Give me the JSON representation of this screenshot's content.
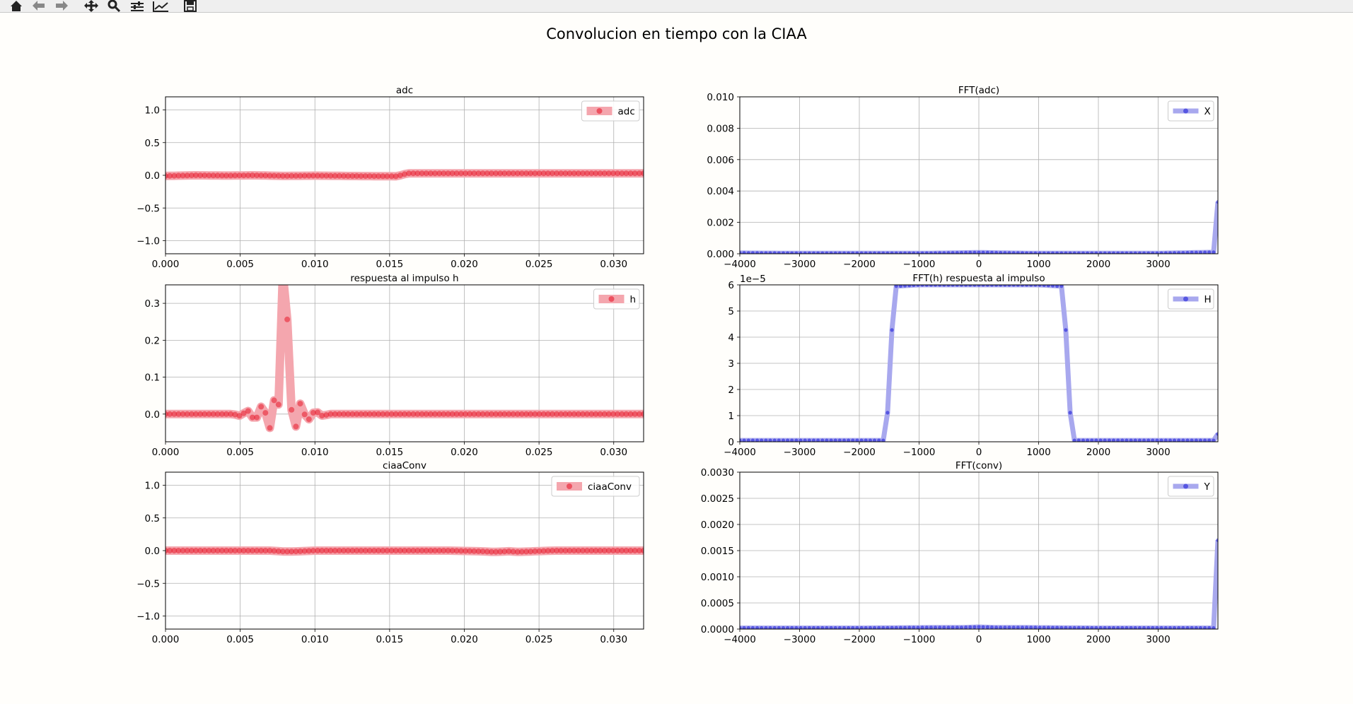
{
  "window": {
    "suptitle": "Convolucion en tiempo con la CIAA"
  },
  "toolbar": {
    "buttons": [
      {
        "name": "home-icon"
      },
      {
        "name": "back-arrow-icon"
      },
      {
        "name": "forward-arrow-icon"
      },
      {
        "name": "pan-icon"
      },
      {
        "name": "zoom-icon"
      },
      {
        "name": "configure-subplots-icon"
      },
      {
        "name": "edit-axis-icon"
      },
      {
        "name": "save-icon"
      }
    ]
  },
  "colors": {
    "red_line": "#f4a6ae",
    "red_marker": "#e8192c",
    "blue_line": "#a8a8ee",
    "blue_marker": "#2020d8",
    "grid": "#b0b0b0",
    "background": "#fffefb"
  },
  "chart_data": [
    {
      "type": "line",
      "title": "adc",
      "xlim": [
        0,
        0.032
      ],
      "ylim": [
        -1.2,
        1.2
      ],
      "xticks": [
        0.0,
        0.005,
        0.01,
        0.015,
        0.02,
        0.025,
        0.03
      ],
      "xtick_labels": [
        "0.000",
        "0.005",
        "0.010",
        "0.015",
        "0.020",
        "0.025",
        "0.030"
      ],
      "yticks": [
        -1.0,
        -0.5,
        0.0,
        0.5,
        1.0
      ],
      "ytick_labels": [
        "−1.0",
        "−0.5",
        "0.0",
        "0.5",
        "1.0"
      ],
      "grid": true,
      "legend_position": "top-right",
      "series": [
        {
          "name": "adc",
          "color": "red",
          "x": [
            0,
            0.002,
            0.004,
            0.006,
            0.008,
            0.01,
            0.012,
            0.0155,
            0.0162,
            0.018,
            0.02,
            0.022,
            0.024,
            0.026,
            0.028,
            0.03,
            0.032
          ],
          "y": [
            -0.01,
            0.0,
            -0.005,
            0.0,
            -0.01,
            -0.005,
            -0.01,
            -0.015,
            0.03,
            0.03,
            0.03,
            0.03,
            0.03,
            0.03,
            0.03,
            0.03,
            0.03
          ]
        }
      ]
    },
    {
      "type": "line",
      "title": "FFT(adc)",
      "xlim": [
        -4000,
        4000
      ],
      "ylim": [
        0,
        0.01
      ],
      "xticks": [
        -4000,
        -3000,
        -2000,
        -1000,
        0,
        1000,
        2000,
        3000
      ],
      "xtick_labels": [
        "−4000",
        "−3000",
        "−2000",
        "−1000",
        "0",
        "1000",
        "2000",
        "3000"
      ],
      "yticks": [
        0.0,
        0.002,
        0.004,
        0.006,
        0.008,
        0.01
      ],
      "ytick_labels": [
        "0.000",
        "0.002",
        "0.004",
        "0.006",
        "0.008",
        "0.010"
      ],
      "grid": true,
      "legend_position": "top-right",
      "series": [
        {
          "name": "X",
          "color": "blue",
          "x": [
            -4000,
            -3000,
            -2000,
            -1000,
            -500,
            0,
            500,
            1000,
            2000,
            3000,
            3990,
            4000
          ],
          "y": [
            5e-05,
            3e-05,
            3e-05,
            3e-05,
            5e-05,
            8e-05,
            5e-05,
            3e-05,
            3e-05,
            3e-05,
            0.0001,
            0.0033
          ]
        }
      ]
    },
    {
      "type": "line",
      "title": "respuesta al impulso h",
      "xlim": [
        0,
        0.032
      ],
      "ylim": [
        -0.075,
        0.35
      ],
      "xticks": [
        0.0,
        0.005,
        0.01,
        0.015,
        0.02,
        0.025,
        0.03
      ],
      "xtick_labels": [
        "0.000",
        "0.005",
        "0.010",
        "0.015",
        "0.020",
        "0.025",
        "0.030"
      ],
      "yticks": [
        0.0,
        0.1,
        0.2,
        0.3
      ],
      "ytick_labels": [
        "0.0",
        "0.1",
        "0.2",
        "0.3"
      ],
      "grid": true,
      "legend_position": "top-right",
      "series": [
        {
          "name": "h",
          "color": "red",
          "x": [
            0,
            0.0045,
            0.005,
            0.0055,
            0.006,
            0.0065,
            0.007,
            0.0073,
            0.0075,
            0.0077,
            0.0078,
            0.008,
            0.0082,
            0.0083,
            0.0085,
            0.0087,
            0.009,
            0.0095,
            0.01,
            0.0105,
            0.011,
            0.032
          ],
          "y": [
            0,
            0,
            -0.005,
            0.01,
            -0.02,
            0.03,
            -0.04,
            0.045,
            -0.06,
            0.21,
            0.38,
            0.38,
            0.21,
            -0.06,
            0.045,
            -0.04,
            0.03,
            -0.02,
            0.01,
            -0.005,
            0,
            0
          ]
        }
      ]
    },
    {
      "type": "line",
      "title": "FFT(h) respuesta al impulso",
      "xlim": [
        -4000,
        4000
      ],
      "ylim": [
        0,
        6
      ],
      "offset_label": "1e−5",
      "xticks": [
        -4000,
        -3000,
        -2000,
        -1000,
        0,
        1000,
        2000,
        3000
      ],
      "xtick_labels": [
        "−4000",
        "−3000",
        "−2000",
        "−1000",
        "0",
        "1000",
        "2000",
        "3000"
      ],
      "yticks": [
        0,
        1,
        2,
        3,
        4,
        5,
        6
      ],
      "ytick_labels": [
        "0",
        "1",
        "2",
        "3",
        "4",
        "5",
        "6"
      ],
      "grid": true,
      "legend_position": "top-right",
      "series": [
        {
          "name": "H",
          "color": "blue",
          "x": [
            -4000,
            -1600,
            -1570,
            -1510,
            -1450,
            -1390,
            -1000,
            0,
            1000,
            1390,
            1450,
            1510,
            1570,
            1600,
            3990,
            4000
          ],
          "y": [
            0.05,
            0.05,
            0.15,
            1.5,
            4.5,
            5.95,
            6,
            6,
            6,
            5.95,
            4.5,
            1.5,
            0.15,
            0.05,
            0.05,
            0.3
          ]
        }
      ]
    },
    {
      "type": "line",
      "title": "ciaaConv",
      "xlim": [
        0,
        0.032
      ],
      "ylim": [
        -1.2,
        1.2
      ],
      "xticks": [
        0.0,
        0.005,
        0.01,
        0.015,
        0.02,
        0.025,
        0.03
      ],
      "xtick_labels": [
        "0.000",
        "0.005",
        "0.010",
        "0.015",
        "0.020",
        "0.025",
        "0.030"
      ],
      "yticks": [
        -1.0,
        -0.5,
        0.0,
        0.5,
        1.0
      ],
      "ytick_labels": [
        "−1.0",
        "−0.5",
        "0.0",
        "0.5",
        "1.0"
      ],
      "grid": true,
      "legend_position": "top-right",
      "series": [
        {
          "name": "ciaaConv",
          "color": "red",
          "x": [
            0,
            0.004,
            0.007,
            0.008,
            0.009,
            0.01,
            0.013,
            0.016,
            0.019,
            0.021,
            0.022,
            0.023,
            0.0235,
            0.026,
            0.029,
            0.032
          ],
          "y": [
            0,
            0,
            0,
            -0.015,
            -0.01,
            0,
            0,
            0,
            0,
            -0.01,
            -0.02,
            -0.01,
            -0.02,
            0,
            0,
            0
          ]
        }
      ]
    },
    {
      "type": "line",
      "title": "FFT(conv)",
      "xlim": [
        -4000,
        4000
      ],
      "ylim": [
        0,
        0.003
      ],
      "xticks": [
        -4000,
        -3000,
        -2000,
        -1000,
        0,
        1000,
        2000,
        3000
      ],
      "xtick_labels": [
        "−4000",
        "−3000",
        "−2000",
        "−1000",
        "0",
        "1000",
        "2000",
        "3000"
      ],
      "yticks": [
        0.0,
        0.0005,
        0.001,
        0.0015,
        0.002,
        0.0025,
        0.003
      ],
      "ytick_labels": [
        "0.0000",
        "0.0005",
        "0.0010",
        "0.0015",
        "0.0020",
        "0.0025",
        "0.0030"
      ],
      "grid": true,
      "legend_position": "top-right",
      "series": [
        {
          "name": "Y",
          "color": "blue",
          "x": [
            -4000,
            -2000,
            -700,
            -300,
            0,
            300,
            700,
            2000,
            3990,
            4000
          ],
          "y": [
            2e-05,
            2e-05,
            3e-05,
            3e-05,
            4e-05,
            3e-05,
            3e-05,
            2e-05,
            2e-05,
            0.0017
          ]
        }
      ]
    }
  ]
}
